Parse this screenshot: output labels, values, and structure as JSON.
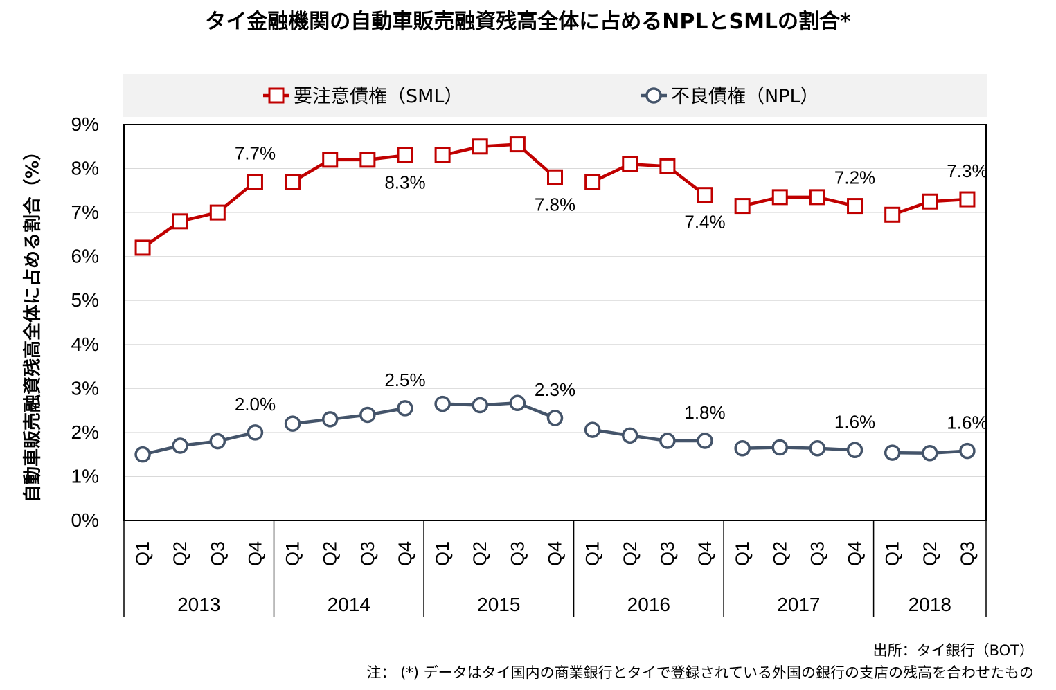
{
  "chart_data": {
    "type": "line",
    "title": "タイ金融機関の自動車販売融資残高全体に占めるNPLとSMLの割合*",
    "ylabel": "自動車販売融資残高全体に占める割合（%）",
    "xlabel": "",
    "ylim": [
      0,
      9
    ],
    "yticks": [
      "0%",
      "1%",
      "2%",
      "3%",
      "4%",
      "5%",
      "6%",
      "7%",
      "8%",
      "9%"
    ],
    "grid": true,
    "legend_position": "top",
    "years": [
      {
        "label": "2013",
        "quarters": [
          "Q1",
          "Q2",
          "Q3",
          "Q4"
        ]
      },
      {
        "label": "2014",
        "quarters": [
          "Q1",
          "Q2",
          "Q3",
          "Q4"
        ]
      },
      {
        "label": "2015",
        "quarters": [
          "Q1",
          "Q2",
          "Q3",
          "Q4"
        ]
      },
      {
        "label": "2016",
        "quarters": [
          "Q1",
          "Q2",
          "Q3",
          "Q4"
        ]
      },
      {
        "label": "2017",
        "quarters": [
          "Q1",
          "Q2",
          "Q3",
          "Q4"
        ]
      },
      {
        "label": "2018",
        "quarters": [
          "Q1",
          "Q2",
          "Q3"
        ]
      }
    ],
    "series": [
      {
        "name": "要注意債権（SML）",
        "color": "#c00000",
        "marker": "square",
        "values": [
          6.2,
          6.8,
          7.0,
          7.7,
          7.7,
          8.2,
          8.2,
          8.3,
          8.3,
          8.5,
          8.55,
          7.8,
          7.7,
          8.1,
          8.05,
          7.4,
          7.15,
          7.35,
          7.35,
          7.15,
          6.95,
          7.25,
          7.3
        ],
        "data_labels": [
          {
            "index": 3,
            "text": "7.7%",
            "pos": "above"
          },
          {
            "index": 7,
            "text": "8.3%",
            "pos": "below"
          },
          {
            "index": 11,
            "text": "7.8%",
            "pos": "below"
          },
          {
            "index": 15,
            "text": "7.4%",
            "pos": "below"
          },
          {
            "index": 19,
            "text": "7.2%",
            "pos": "above"
          },
          {
            "index": 22,
            "text": "7.3%",
            "pos": "above"
          }
        ]
      },
      {
        "name": "不良債権（NPL）",
        "color": "#44546a",
        "marker": "circle",
        "values": [
          1.5,
          1.7,
          1.8,
          2.0,
          2.2,
          2.3,
          2.4,
          2.55,
          2.65,
          2.62,
          2.67,
          2.33,
          2.06,
          1.93,
          1.81,
          1.81,
          1.64,
          1.66,
          1.64,
          1.6,
          1.54,
          1.53,
          1.58
        ],
        "data_labels": [
          {
            "index": 3,
            "text": "2.0%",
            "pos": "above"
          },
          {
            "index": 7,
            "text": "2.5%",
            "pos": "above"
          },
          {
            "index": 11,
            "text": "2.3%",
            "pos": "above"
          },
          {
            "index": 15,
            "text": "1.8%",
            "pos": "above"
          },
          {
            "index": 19,
            "text": "1.6%",
            "pos": "above"
          },
          {
            "index": 22,
            "text": "1.6%",
            "pos": "above"
          }
        ]
      }
    ]
  },
  "notes": {
    "source": "出所：タイ銀行（BOT）",
    "footnote": "注： (*) データはタイ国内の商業銀行とタイで登録されている外国の銀行の支店の残高を合わせたもの"
  }
}
